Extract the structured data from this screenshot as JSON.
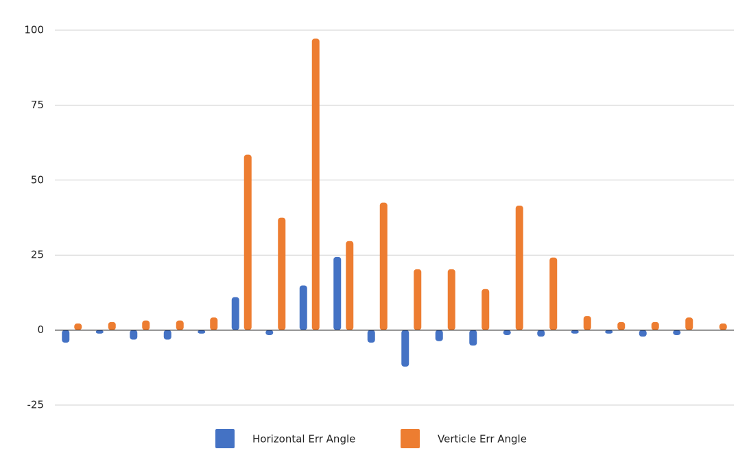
{
  "chart_data": {
    "type": "bar",
    "categories": [
      null,
      null,
      null,
      null,
      null,
      null,
      null,
      null,
      null,
      null,
      null,
      null,
      null,
      null,
      null,
      null,
      null,
      null,
      null,
      null
    ],
    "series": [
      {
        "name": "Horizontal Err Angle",
        "color": "#4472c4",
        "values": [
          -3.5,
          -0.5,
          -2.5,
          -2.5,
          -0.5,
          10.3,
          -1,
          14.2,
          23.7,
          -3.5,
          -11.5,
          -3,
          -4.5,
          -1,
          -1.5,
          -0.5,
          -0.5,
          -1.5,
          -1,
          null
        ]
      },
      {
        "name": "Verticle Err Angle",
        "color": "#ed7d31",
        "values": [
          1.5,
          2,
          2.5,
          2.5,
          3.5,
          57.8,
          36.8,
          96.5,
          29,
          41.8,
          19.6,
          19.6,
          13,
          40.8,
          23.5,
          4,
          2,
          2,
          3.5,
          1.5
        ]
      }
    ],
    "ylim": [
      -25,
      100
    ],
    "yticks": [
      -25,
      0,
      25,
      50,
      75,
      100
    ],
    "grid": true,
    "legend": "bottom"
  }
}
